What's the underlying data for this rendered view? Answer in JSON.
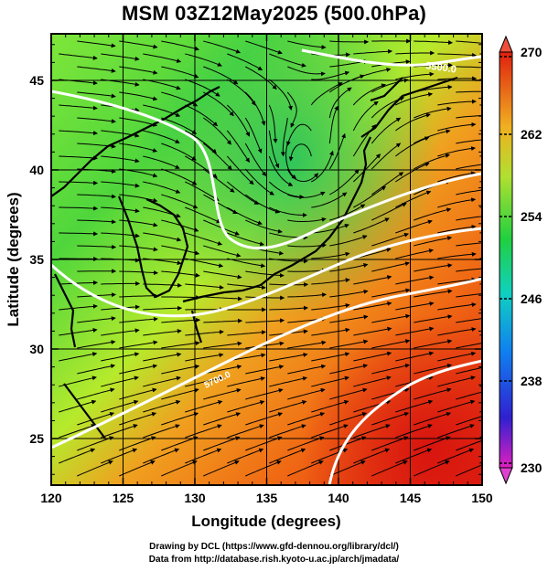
{
  "title": "MSM 03Z12May2025 (500.0hPa)",
  "map": {
    "xlabel": "Longitude (degrees)",
    "ylabel": "Latitude  (degrees)",
    "xticks": [
      120,
      125,
      130,
      135,
      140,
      145,
      150
    ],
    "yticks": [
      25,
      30,
      35,
      40,
      45
    ],
    "xlim": [
      120,
      150
    ],
    "ylim": [
      22.4,
      47.6
    ],
    "contour_label": "5500.0",
    "contour_label_2": "5700.0"
  },
  "colorbar": {
    "labels": [
      "270",
      "262",
      "254",
      "246",
      "238",
      "230"
    ],
    "range": [
      230,
      270
    ]
  },
  "credits": {
    "line1": "Drawing by DCL (https://www.gfd-dennou.org/library/dcl/)",
    "line2": "Data from http://database.rish.kyoto-u.ac.jp/arch/jmadata/"
  }
}
